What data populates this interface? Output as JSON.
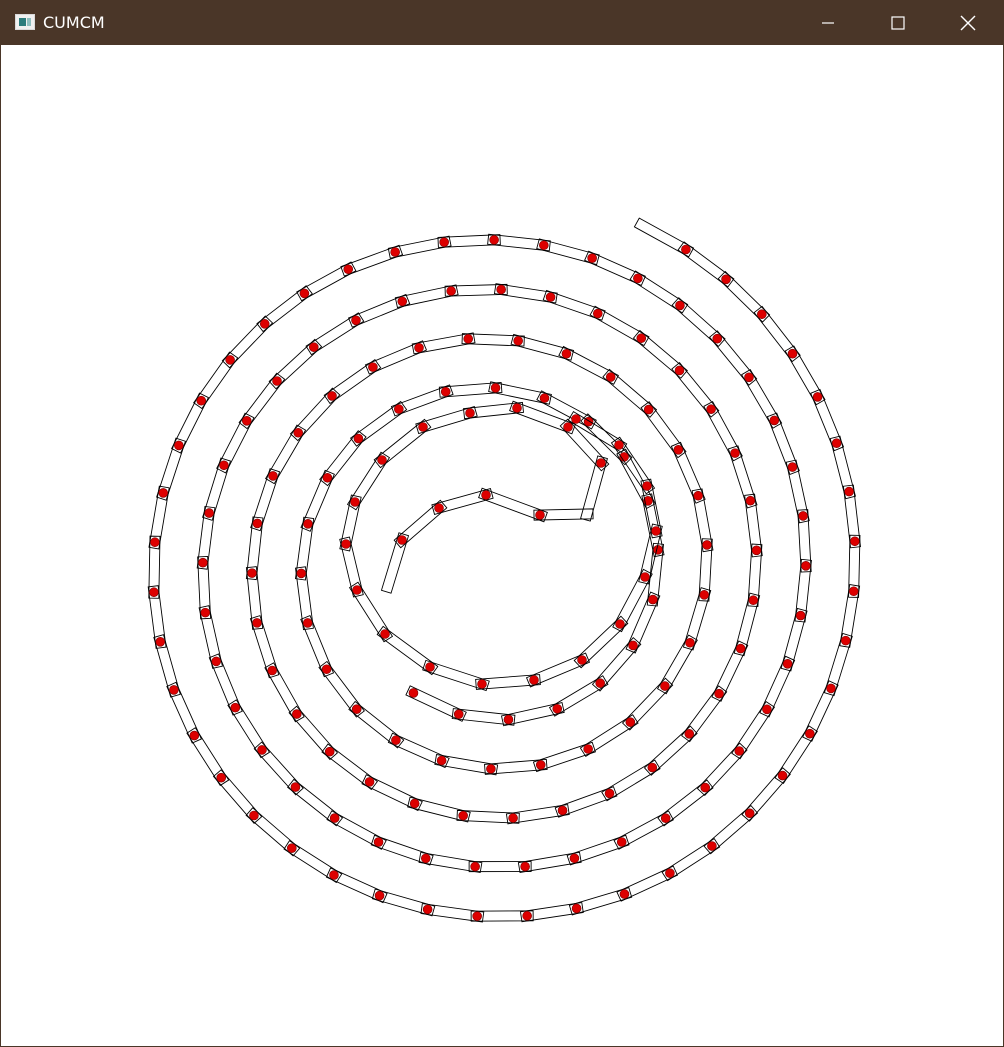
{
  "window": {
    "title": "CUMCM",
    "icon": "app-window-icon",
    "controls": [
      "minimize-icon",
      "maximize-icon",
      "close-icon"
    ]
  },
  "colors": {
    "titlebar": "#4a3628",
    "titlebar_text": "#ffffff",
    "canvas_bg": "#ffffff",
    "segment_stroke": "#000000",
    "hinge_dot": "#dd0000"
  }
}
